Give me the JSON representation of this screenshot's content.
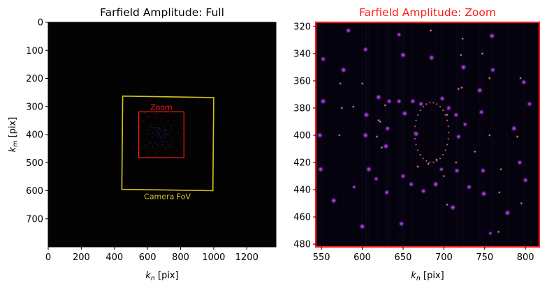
{
  "colors": {
    "zoom": "#ff1a1a",
    "camera": "#d4c21c",
    "spot": "#b23cdc",
    "bright": "#ff9a6a",
    "background": "#020105"
  },
  "chart_data": [
    {
      "type": "heatmap",
      "title": "Farfield Amplitude: Full",
      "xlabel_main": "k",
      "xlabel_sub": "n",
      "xlabel_unit": " [pix]",
      "ylabel_main": "k",
      "ylabel_sub": "m",
      "ylabel_unit": " [pix]",
      "xlim": [
        0,
        1376
      ],
      "ylim": [
        800,
        0
      ],
      "xticks": [
        0,
        200,
        400,
        600,
        800,
        1000,
        1200
      ],
      "yticks": [
        0,
        100,
        200,
        300,
        400,
        500,
        600,
        700
      ],
      "annotations": {
        "zoom_label": "Zoom",
        "camera_label": "Camera FoV",
        "zoom_box": [
          [
            547,
            319
          ],
          [
            820,
            319
          ],
          [
            820,
            482
          ],
          [
            547,
            482
          ]
        ],
        "camera_fov": [
          [
            450,
            263
          ],
          [
            1000,
            268
          ],
          [
            995,
            600
          ],
          [
            445,
            595
          ]
        ],
        "pattern_center": [
          685,
          398
        ]
      }
    },
    {
      "type": "heatmap",
      "title": "Farfield Amplitude: Zoom",
      "xlabel_main": "k",
      "xlabel_sub": "n",
      "xlabel_unit": " [pix]",
      "xlim": [
        543,
        817
      ],
      "ylim": [
        482,
        317
      ],
      "xticks": [
        550,
        600,
        650,
        700,
        750,
        800
      ],
      "yticks": [
        320,
        340,
        360,
        380,
        400,
        420,
        440,
        460,
        480
      ],
      "pattern_center": [
        685,
        398
      ],
      "spots": [
        [
          548,
          400,
          1.0
        ],
        [
          549,
          425,
          1.0
        ],
        [
          552,
          375,
          1.0
        ],
        [
          552,
          344,
          0.9
        ],
        [
          565,
          448,
          1.0
        ],
        [
          577,
          352,
          1.0
        ],
        [
          583,
          323,
          0.9
        ],
        [
          590,
          438,
          0.7
        ],
        [
          600,
          467,
          1.0
        ],
        [
          604,
          337,
          0.9
        ],
        [
          604,
          400,
          1.0
        ],
        [
          605,
          385,
          1.0
        ],
        [
          608,
          425,
          1.0
        ],
        [
          617,
          432,
          0.8
        ],
        [
          620,
          372,
          1.0
        ],
        [
          629,
          408,
          1.0
        ],
        [
          630,
          442,
          0.9
        ],
        [
          631,
          395,
          0.9
        ],
        [
          633,
          375,
          0.9
        ],
        [
          645,
          375,
          0.9
        ],
        [
          645,
          326,
          0.8
        ],
        [
          648,
          465,
          0.9
        ],
        [
          650,
          341,
          1.0
        ],
        [
          650,
          430,
          0.9
        ],
        [
          652,
          384,
          1.0
        ],
        [
          660,
          436,
          0.9
        ],
        [
          666,
          399,
          1.0
        ],
        [
          662,
          375,
          0.9
        ],
        [
          672,
          377,
          0.9
        ],
        [
          675,
          441,
          0.9
        ],
        [
          685,
          343,
          1.0
        ],
        [
          690,
          436,
          1.0
        ],
        [
          697,
          425,
          0.8
        ],
        [
          698,
          373,
          0.9
        ],
        [
          706,
          380,
          0.9
        ],
        [
          711,
          453,
          1.0
        ],
        [
          715,
          385,
          0.9
        ],
        [
          718,
          401,
          0.9
        ],
        [
          716,
          426,
          0.9
        ],
        [
          724,
          350,
          1.0
        ],
        [
          726,
          392,
          0.8
        ],
        [
          731,
          438,
          0.9
        ],
        [
          744,
          367,
          1.0
        ],
        [
          746,
          383,
          0.9
        ],
        [
          748,
          426,
          0.9
        ],
        [
          749,
          443,
          1.0
        ],
        [
          757,
          472,
          0.7
        ],
        [
          759,
          327,
          1.0
        ],
        [
          760,
          352,
          0.9
        ],
        [
          778,
          457,
          1.0
        ],
        [
          786,
          395,
          1.0
        ],
        [
          793,
          420,
          0.9
        ],
        [
          798,
          361,
          0.9
        ],
        [
          800,
          433,
          0.9
        ],
        [
          805,
          377,
          0.9
        ]
      ],
      "bright_spots": [
        [
          572,
          400
        ],
        [
          575,
          380
        ],
        [
          573,
          362
        ],
        [
          589,
          379
        ],
        [
          600,
          362
        ],
        [
          618,
          401
        ],
        [
          620,
          389
        ],
        [
          622,
          390
        ],
        [
          624,
          409
        ],
        [
          628,
          378
        ],
        [
          668,
          423
        ],
        [
          681,
          421
        ],
        [
          691,
          418
        ],
        [
          700,
          430
        ],
        [
          704,
          385
        ],
        [
          715,
          420
        ],
        [
          718,
          366
        ],
        [
          721,
          341
        ],
        [
          722,
          365
        ],
        [
          738,
          412
        ],
        [
          747,
          340
        ],
        [
          756,
          400
        ],
        [
          756,
          358
        ],
        [
          767,
          471
        ],
        [
          768,
          442
        ],
        [
          770,
          425
        ],
        [
          790,
          401
        ],
        [
          794,
          358
        ],
        [
          795,
          450
        ],
        [
          684,
          323
        ],
        [
          723,
          329
        ],
        [
          704,
          451
        ]
      ]
    }
  ]
}
